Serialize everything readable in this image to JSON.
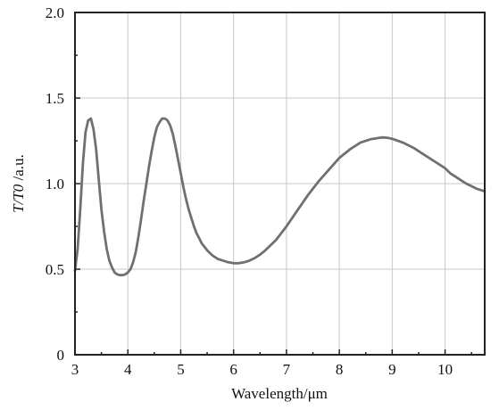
{
  "chart_data": {
    "type": "line",
    "title": "",
    "xlabel": "Wavelength/μm",
    "ylabel_italic": "T/T0",
    "ylabel_unit": " /a.u.",
    "xlim": [
      3,
      10.75
    ],
    "ylim": [
      0,
      2.0
    ],
    "grid": true,
    "legend": "none",
    "x_ticks": [
      3,
      4,
      5,
      6,
      7,
      8,
      9,
      10
    ],
    "x_tick_labels": [
      "3",
      "4",
      "5",
      "6",
      "7",
      "8",
      "9",
      "10"
    ],
    "y_ticks": [
      0,
      0.5,
      1.0,
      1.5,
      2.0
    ],
    "y_tick_labels": [
      "0",
      "0.5",
      "1.0",
      "1.5",
      "2.0"
    ],
    "colors": {
      "line": "#707070",
      "grid": "#c8c8c8",
      "frame": "#222222"
    },
    "series": [
      {
        "x": [
          3.0,
          3.05,
          3.1,
          3.15,
          3.2,
          3.25,
          3.3,
          3.35,
          3.4,
          3.45,
          3.5,
          3.55,
          3.6,
          3.65,
          3.7,
          3.75,
          3.8,
          3.85,
          3.9,
          3.95,
          4.0,
          4.05,
          4.1,
          4.15,
          4.2,
          4.25,
          4.3,
          4.35,
          4.4,
          4.45,
          4.5,
          4.55,
          4.6,
          4.65,
          4.7,
          4.75,
          4.8,
          4.85,
          4.9,
          4.95,
          5.0,
          5.05,
          5.1,
          5.15,
          5.2,
          5.25,
          5.3,
          5.35,
          5.4,
          5.45,
          5.5,
          5.6,
          5.7,
          5.8,
          5.9,
          6.0,
          6.1,
          6.2,
          6.3,
          6.4,
          6.5,
          6.6,
          6.7,
          6.8,
          6.9,
          7.0,
          7.2,
          7.4,
          7.6,
          7.8,
          8.0,
          8.2,
          8.4,
          8.6,
          8.8,
          8.9,
          9.0,
          9.2,
          9.4,
          9.6,
          9.8,
          10.0,
          10.1,
          10.2,
          10.3,
          10.4,
          10.5,
          10.6,
          10.7,
          10.75
        ],
        "y": [
          0.49,
          0.62,
          0.85,
          1.12,
          1.3,
          1.37,
          1.38,
          1.32,
          1.2,
          1.02,
          0.85,
          0.72,
          0.62,
          0.55,
          0.51,
          0.48,
          0.47,
          0.465,
          0.465,
          0.47,
          0.48,
          0.5,
          0.54,
          0.6,
          0.69,
          0.79,
          0.9,
          1.0,
          1.1,
          1.19,
          1.27,
          1.33,
          1.36,
          1.38,
          1.38,
          1.37,
          1.34,
          1.29,
          1.22,
          1.14,
          1.06,
          0.98,
          0.91,
          0.85,
          0.8,
          0.75,
          0.71,
          0.68,
          0.65,
          0.63,
          0.61,
          0.58,
          0.56,
          0.55,
          0.54,
          0.535,
          0.535,
          0.54,
          0.55,
          0.565,
          0.585,
          0.61,
          0.64,
          0.67,
          0.71,
          0.75,
          0.84,
          0.93,
          1.01,
          1.08,
          1.15,
          1.2,
          1.24,
          1.26,
          1.27,
          1.268,
          1.262,
          1.24,
          1.21,
          1.17,
          1.13,
          1.09,
          1.06,
          1.04,
          1.02,
          1.0,
          0.985,
          0.97,
          0.96,
          0.955
        ]
      }
    ]
  }
}
